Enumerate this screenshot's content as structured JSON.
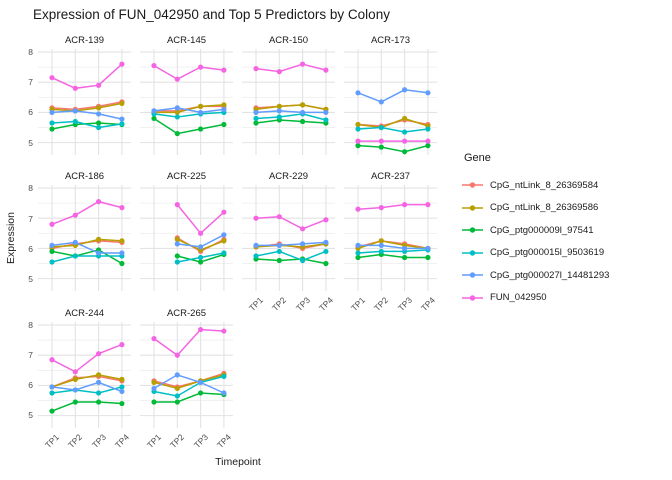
{
  "title": "Expression of FUN_042950 and Top 5 Predictors by Colony",
  "axes": {
    "x_title": "Timepoint",
    "y_title": "Expression",
    "y_tick_labels": [
      "8",
      "7",
      "6",
      "5"
    ],
    "y_tick_values": [
      8,
      7,
      6,
      5
    ],
    "x_tick_labels": [
      "TP1",
      "TP2",
      "TP3",
      "TP4"
    ]
  },
  "legend": {
    "title": "Gene",
    "entries": [
      {
        "label": "CpG_ntLink_8_26369584",
        "color": "#F8766D"
      },
      {
        "label": "CpG_ntLink_8_26369586",
        "color": "#B79F00"
      },
      {
        "label": "CpG_ptg000009l_97541",
        "color": "#00BA38"
      },
      {
        "label": "CpG_ptg000015l_9503619",
        "color": "#00BFC4"
      },
      {
        "label": "CpG_ptg000027l_14481293",
        "color": "#619CFF"
      },
      {
        "label": "FUN_042950",
        "color": "#F564E3"
      }
    ]
  },
  "chart_data": {
    "type": "line",
    "x": [
      "TP1",
      "TP2",
      "TP3",
      "TP4"
    ],
    "ylim": [
      4.55,
      8.1
    ],
    "grid": {
      "major_values": [
        5,
        6,
        7,
        8
      ],
      "minor_values": [
        5.5,
        6.5,
        7.5
      ]
    },
    "legend_position": "right",
    "series_names": [
      "CpG_ntLink_8_26369584",
      "CpG_ntLink_8_26369586",
      "CpG_ptg000009l_97541",
      "CpG_ptg000015l_9503619",
      "CpG_ptg000027l_14481293",
      "FUN_042950"
    ],
    "series_colors": [
      "#F8766D",
      "#B79F00",
      "#00BA38",
      "#00BFC4",
      "#619CFF",
      "#F564E3"
    ],
    "facets": [
      {
        "name": "ACR-139",
        "values": [
          [
            6.15,
            6.1,
            6.2,
            6.35
          ],
          [
            6.1,
            6.05,
            6.15,
            6.3
          ],
          [
            5.45,
            5.6,
            5.65,
            5.6
          ],
          [
            5.65,
            5.7,
            5.5,
            5.62
          ],
          [
            6.0,
            6.05,
            5.95,
            5.78
          ],
          [
            7.15,
            6.8,
            6.9,
            7.6
          ]
        ]
      },
      {
        "name": "ACR-145",
        "values": [
          [
            6.05,
            6.05,
            6.2,
            6.2
          ],
          [
            6.0,
            6.0,
            6.2,
            6.25
          ],
          [
            5.8,
            5.3,
            5.45,
            5.6
          ],
          [
            5.95,
            5.85,
            5.95,
            6.0
          ],
          [
            6.05,
            6.15,
            6.0,
            6.1
          ],
          [
            7.55,
            7.1,
            7.5,
            7.4
          ]
        ]
      },
      {
        "name": "ACR-150",
        "values": [
          [
            6.15,
            6.2,
            6.25,
            6.1
          ],
          [
            6.1,
            6.2,
            6.25,
            6.1
          ],
          [
            5.65,
            5.75,
            5.7,
            5.65
          ],
          [
            5.8,
            5.85,
            5.95,
            5.75
          ],
          [
            6.0,
            6.05,
            6.0,
            6.0
          ],
          [
            7.45,
            7.35,
            7.6,
            7.4
          ]
        ]
      },
      {
        "name": "ACR-173",
        "values": [
          [
            5.6,
            5.55,
            5.75,
            5.6
          ],
          [
            5.6,
            5.5,
            5.8,
            5.55
          ],
          [
            4.9,
            4.85,
            4.7,
            4.9
          ],
          [
            5.45,
            5.5,
            5.35,
            5.45
          ],
          [
            6.65,
            6.35,
            6.75,
            6.65
          ],
          [
            5.05,
            5.05,
            5.05,
            5.05
          ]
        ]
      },
      {
        "name": "ACR-186",
        "values": [
          [
            6.0,
            6.15,
            6.25,
            6.2
          ],
          [
            6.05,
            6.1,
            6.3,
            6.25
          ],
          [
            5.9,
            5.75,
            5.95,
            5.5
          ],
          [
            5.55,
            5.75,
            5.75,
            5.75
          ],
          [
            6.1,
            6.2,
            5.85,
            5.85
          ],
          [
            6.8,
            7.1,
            7.55,
            7.35
          ]
        ]
      },
      {
        "name": "ACR-225",
        "values": [
          [
            null,
            6.35,
            5.9,
            6.3
          ],
          [
            null,
            6.3,
            5.95,
            6.25
          ],
          [
            null,
            5.75,
            5.55,
            5.8
          ],
          [
            null,
            5.55,
            5.7,
            5.85
          ],
          [
            null,
            6.15,
            6.05,
            6.45
          ],
          [
            null,
            7.45,
            6.5,
            7.2
          ]
        ]
      },
      {
        "name": "ACR-229",
        "values": [
          [
            6.05,
            6.15,
            6.0,
            6.15
          ],
          [
            6.05,
            6.1,
            6.05,
            6.15
          ],
          [
            5.65,
            5.6,
            5.65,
            5.5
          ],
          [
            5.75,
            5.9,
            5.6,
            5.9
          ],
          [
            6.1,
            6.1,
            6.15,
            6.2
          ],
          [
            7.0,
            7.05,
            6.65,
            6.95
          ]
        ]
      },
      {
        "name": "ACR-237",
        "values": [
          [
            6.05,
            6.25,
            6.15,
            6.0
          ],
          [
            6.0,
            6.25,
            6.1,
            6.0
          ],
          [
            5.7,
            5.8,
            5.7,
            5.7
          ],
          [
            5.85,
            5.9,
            5.9,
            5.95
          ],
          [
            6.1,
            6.1,
            6.0,
            6.0
          ],
          [
            7.3,
            7.35,
            7.45,
            7.45
          ]
        ]
      },
      {
        "name": "ACR-244",
        "values": [
          [
            5.95,
            6.25,
            6.3,
            6.15
          ],
          [
            5.95,
            6.2,
            6.35,
            6.2
          ],
          [
            5.15,
            5.45,
            5.45,
            5.4
          ],
          [
            5.75,
            5.85,
            5.75,
            5.95
          ],
          [
            5.95,
            5.85,
            6.1,
            5.8
          ],
          [
            6.85,
            6.45,
            7.05,
            7.35
          ]
        ]
      },
      {
        "name": "ACR-265",
        "values": [
          [
            6.15,
            5.95,
            6.15,
            6.4
          ],
          [
            6.1,
            5.9,
            6.15,
            6.35
          ],
          [
            5.45,
            5.45,
            5.75,
            5.7
          ],
          [
            5.8,
            5.65,
            6.1,
            6.3
          ],
          [
            5.9,
            6.35,
            6.1,
            5.75
          ],
          [
            7.55,
            7.0,
            7.85,
            7.8
          ]
        ]
      }
    ]
  }
}
